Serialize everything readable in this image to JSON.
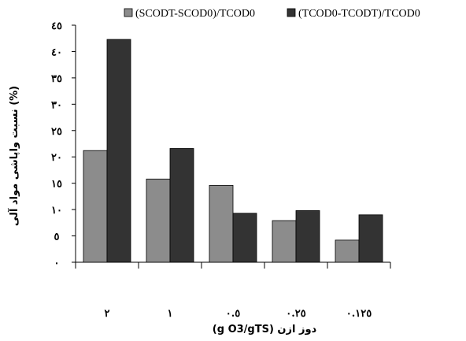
{
  "chart_data": {
    "type": "bar",
    "categories": [
      "٢",
      "١",
      "٠.٥",
      "٠.٢٥",
      "٠.١٢٥"
    ],
    "series": [
      {
        "name": "(SCODT-SCOD0)/TCOD0",
        "color": "#8c8c8c",
        "values": [
          21.2,
          15.8,
          14.6,
          7.9,
          4.2
        ]
      },
      {
        "name": "(TCOD0-TCODT)/TCOD0",
        "color": "#333333",
        "values": [
          42.3,
          21.6,
          9.3,
          9.8,
          9.0
        ]
      }
    ],
    "ylim": [
      0,
      45
    ],
    "yticks": [
      0,
      5,
      10,
      15,
      20,
      25,
      30,
      35,
      40,
      45
    ],
    "ytick_labels": [
      "٠",
      "٥",
      "١٠",
      "١٥",
      "٢٠",
      "٢٥",
      "٣٠",
      "٣٥",
      "٤٠",
      "٤٥"
    ],
    "xlabel": "دوز ازن (g O3/gTS)",
    "ylabel": "نسبت واپاشی مواد آلی (%)",
    "legend_position": "top",
    "grid": false
  }
}
